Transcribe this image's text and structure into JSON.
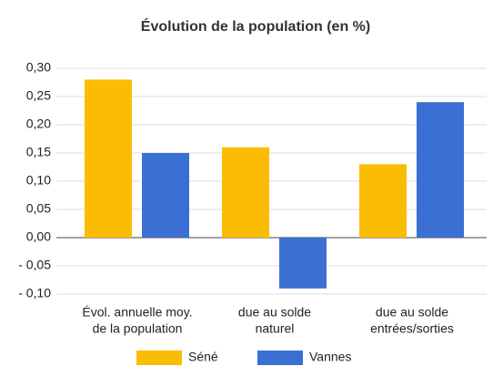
{
  "chart_data": {
    "type": "bar",
    "title": "Évolution de la population (en %)",
    "categories": [
      [
        "Évol. annuelle moy.",
        "de la population"
      ],
      [
        "due au solde",
        "naturel"
      ],
      [
        "due au solde",
        "entrées/sorties"
      ]
    ],
    "series": [
      {
        "name": "Séné",
        "color": "#fbbc04",
        "values": [
          0.28,
          0.16,
          0.13
        ]
      },
      {
        "name": "Vannes",
        "color": "#3a6fd4",
        "values": [
          0.15,
          -0.09,
          0.24
        ]
      }
    ],
    "ylim": [
      -0.1,
      0.3
    ],
    "yticks": [
      {
        "value": -0.1,
        "label": "- 0,10"
      },
      {
        "value": -0.05,
        "label": "- 0,05"
      },
      {
        "value": 0,
        "label": "0,00"
      },
      {
        "value": 0.05,
        "label": "0,05"
      },
      {
        "value": 0.1,
        "label": "0,10"
      },
      {
        "value": 0.15,
        "label": "0,15"
      },
      {
        "value": 0.2,
        "label": "0,20"
      },
      {
        "value": 0.25,
        "label": "0,25"
      },
      {
        "value": 0.3,
        "label": "0,30"
      }
    ],
    "grid": true,
    "legend": "bottom"
  }
}
